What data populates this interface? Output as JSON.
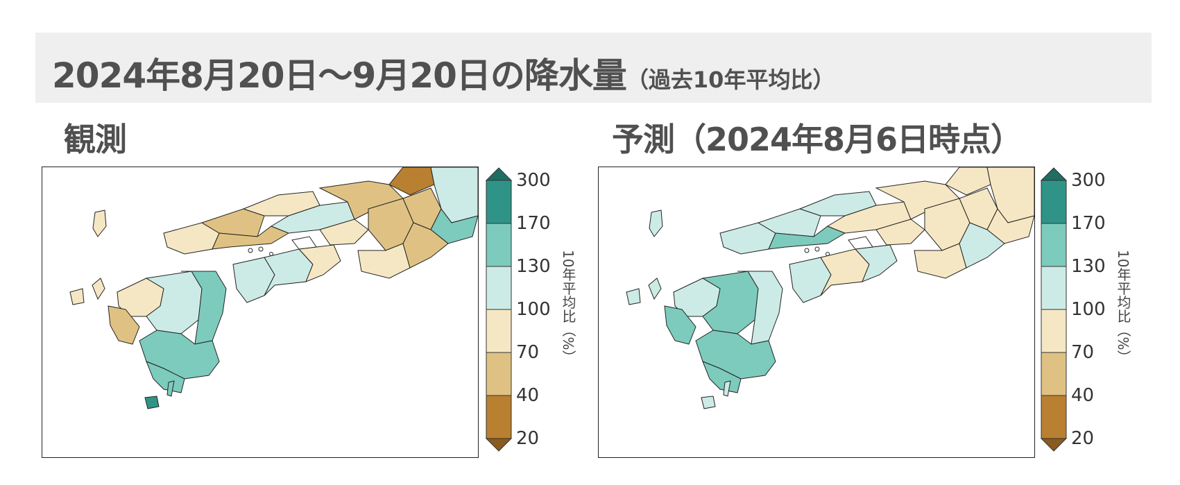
{
  "header": {
    "title_main": "2024年8月20日～9月20日の降水量",
    "title_sub": "（過去10年平均比）"
  },
  "panels": [
    {
      "label": "観測"
    },
    {
      "label": "予測（2024年8月6日時点）"
    }
  ],
  "legend": {
    "axis_label": "10年平均比（%）",
    "ticks": [
      "300",
      "170",
      "130",
      "100",
      "70",
      "40",
      "20"
    ],
    "bins": [
      {
        "from": 170,
        "to": 300,
        "color": "#2f9487"
      },
      {
        "from": 130,
        "to": 170,
        "color": "#7dcbbd"
      },
      {
        "from": 100,
        "to": 130,
        "color": "#cdebe6"
      },
      {
        "from": 70,
        "to": 100,
        "color": "#f6e7c4"
      },
      {
        "from": 40,
        "to": 70,
        "color": "#dfc283"
      },
      {
        "from": 20,
        "to": 40,
        "color": "#b98031"
      }
    ],
    "over_color": "#1f6d63",
    "under_color": "#8b5a1e"
  }
}
